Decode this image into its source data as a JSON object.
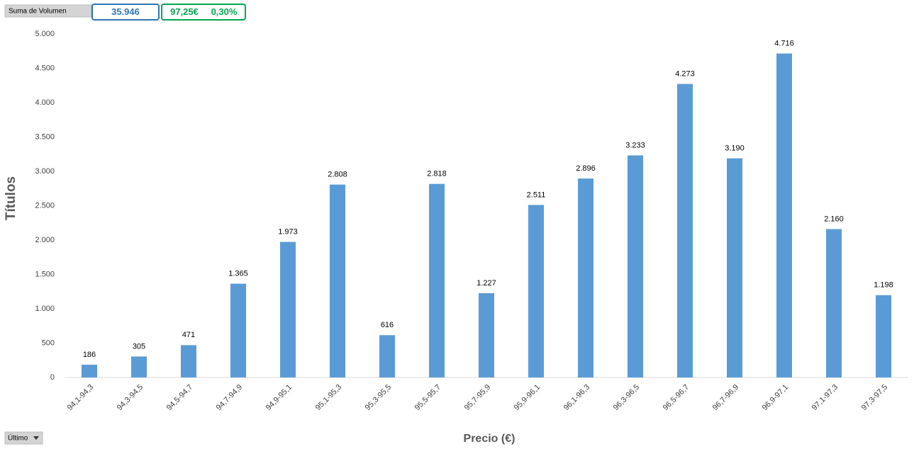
{
  "chart_data": {
    "type": "bar",
    "x_label": "Precio (€)",
    "y_label": "Títulos",
    "categories": [
      "94,1-94,3",
      "94,3-94,5",
      "94,5-94,7",
      "94,7-94,9",
      "94,9-95,1",
      "95,1-95,3",
      "95,3-95,5",
      "95,5-95,7",
      "95,7-95,9",
      "95,9-96,1",
      "96,1-96,3",
      "96,3-96,5",
      "96,5-96,7",
      "96,7-96,9",
      "96,9-97,1",
      "97,1-97,3",
      "97,3-97,5"
    ],
    "values": [
      186,
      305,
      471,
      1365,
      1973,
      2808,
      616,
      2818,
      1227,
      2511,
      2896,
      3233,
      4273,
      3190,
      4716,
      2160,
      1198
    ],
    "value_labels": [
      "186",
      "305",
      "471",
      "1.365",
      "1.973",
      "2.808",
      "616",
      "2.818",
      "1.227",
      "2.511",
      "2.896",
      "3.233",
      "4.273",
      "3.190",
      "4.716",
      "2.160",
      "1.198"
    ],
    "color": "#5b9bd5",
    "ylim": [
      0,
      5000
    ],
    "yticks": [
      0,
      500,
      {
        "value": 1000,
        "label": "1.000"
      },
      {
        "value": 1500,
        "label": "1.500"
      },
      {
        "value": 2000,
        "label": "2.000"
      },
      {
        "value": 2500,
        "label": "2.500"
      },
      {
        "value": 3000,
        "label": "3.000"
      },
      {
        "value": 3500,
        "label": "3.500"
      },
      {
        "value": 4000,
        "label": "4.000"
      },
      {
        "value": 4500,
        "label": "4.500"
      },
      {
        "value": 5000,
        "label": "5.000"
      }
    ],
    "grid": false
  },
  "controls": {
    "value_field": "Suma de Volumen",
    "filter": "Último"
  },
  "summary": {
    "total": "35.946",
    "price": "97,25€",
    "change": "0,30%"
  }
}
